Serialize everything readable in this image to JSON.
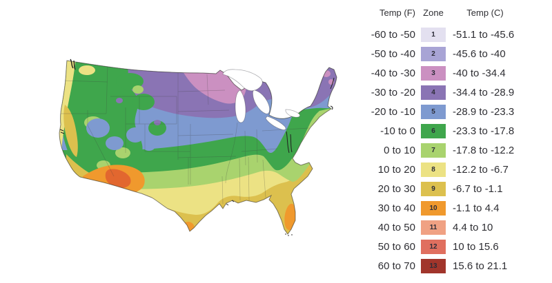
{
  "page": {
    "background": "#ffffff",
    "description": "USDA plant hardiness zone map of the continental United States with temperature legend"
  },
  "zones": {
    "1": "#e3e0f0",
    "2": "#a8a4d5",
    "3": "#cb90c1",
    "4": "#8a74b4",
    "5": "#7e9ad0",
    "6": "#3fa64c",
    "7": "#a9d36e",
    "8": "#ece284",
    "9": "#dcc04e",
    "10": "#f0992d",
    "11": "#f0a183",
    "12": "#e06f5f",
    "13": "#a1352b"
  },
  "map": {
    "region": "continental-united-states",
    "hot_spot_color": "#e2672f",
    "lake_color": "#ffffff",
    "state_line_color": "rgba(60,60,60,0.3)",
    "coast_line_color": "rgba(55,50,45,0.6)"
  },
  "legend": {
    "headers": {
      "f": "Temp (F)",
      "zone": "Zone",
      "c": "Temp (C)"
    },
    "rows": [
      {
        "zone": "1",
        "f": "-60 to -50",
        "c": "-51.1 to -45.6"
      },
      {
        "zone": "2",
        "f": "-50 to -40",
        "c": "-45.6 to -40"
      },
      {
        "zone": "3",
        "f": "-40 to -30",
        "c": "-40 to -34.4"
      },
      {
        "zone": "4",
        "f": "-30 to -20",
        "c": "-34.4 to -28.9"
      },
      {
        "zone": "5",
        "f": "-20 to -10",
        "c": "-28.9 to -23.3"
      },
      {
        "zone": "6",
        "f": "-10 to 0",
        "c": "-23.3 to -17.8"
      },
      {
        "zone": "7",
        "f": "0 to 10",
        "c": "-17.8 to -12.2"
      },
      {
        "zone": "8",
        "f": "10 to 20",
        "c": "-12.2 to -6.7"
      },
      {
        "zone": "9",
        "f": "20 to 30",
        "c": "-6.7 to -1.1"
      },
      {
        "zone": "10",
        "f": "30 to 40",
        "c": "-1.1 to 4.4"
      },
      {
        "zone": "11",
        "f": "40 to 50",
        "c": "4.4 to 10"
      },
      {
        "zone": "12",
        "f": "50 to 60",
        "c": "10 to 15.6"
      },
      {
        "zone": "13",
        "f": "60 to 70",
        "c": "15.6 to 21.1"
      }
    ]
  }
}
